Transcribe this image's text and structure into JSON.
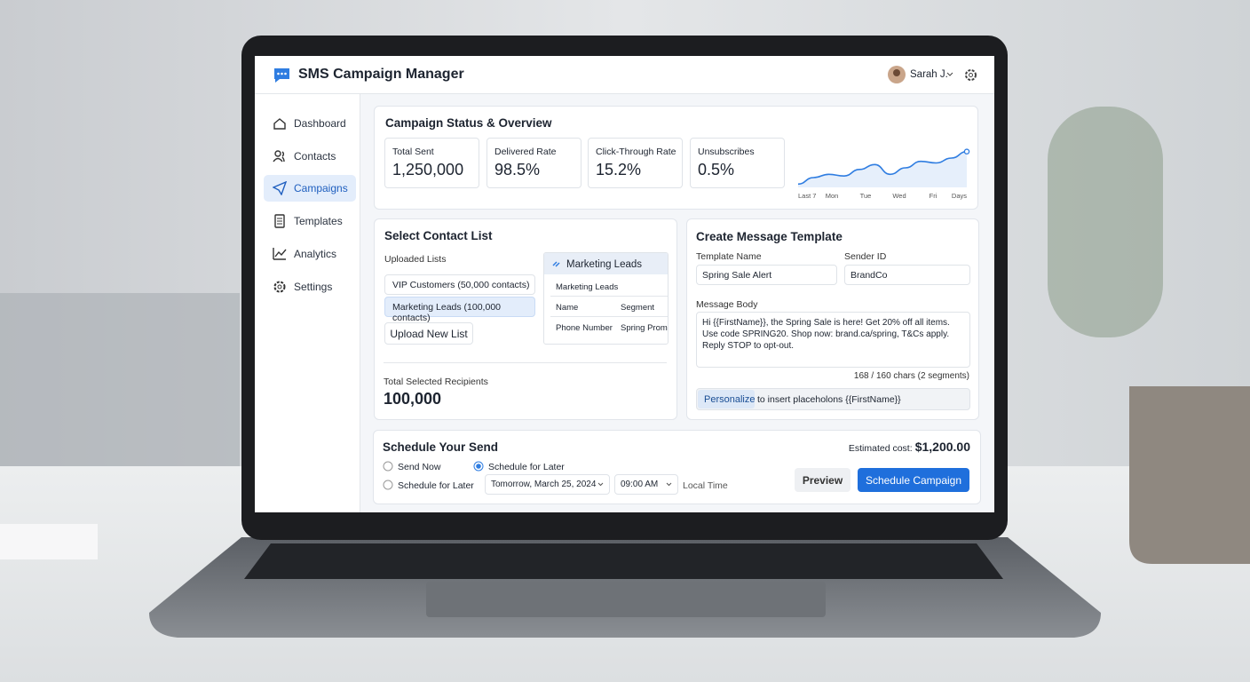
{
  "app": {
    "title": "SMS Campaign Manager",
    "user": "Sarah J.",
    "nav": [
      "Dashboard",
      "Contacts",
      "Campaigns",
      "Templates",
      "Analytics",
      "Settings"
    ]
  },
  "overview": {
    "title": "Campaign Status & Overview",
    "stats": [
      {
        "label": "Total Sent",
        "value": "1,250,000"
      },
      {
        "label": "Delivered Rate",
        "value": "98.5%"
      },
      {
        "label": "Click-Through Rate",
        "value": "15.2%"
      },
      {
        "label": "Unsubscribes",
        "value": "0.5%"
      }
    ],
    "chart": {
      "type": "line",
      "x_labels": [
        "Last 7",
        "Mon",
        "Tue",
        "Wed",
        "Fri",
        "Days"
      ],
      "values": [
        1,
        3,
        4,
        3.5,
        5.5,
        7,
        4,
        6,
        8,
        7.5,
        9,
        11
      ],
      "ylim": [
        0,
        12
      ],
      "color": "#2f7de1"
    }
  },
  "contacts": {
    "title": "Select Contact List",
    "uploaded_label": "Uploaded Lists",
    "lists": [
      "VIP Customers (50,000 contacts)",
      "Marketing Leads (100,000 contacts)"
    ],
    "upload_button": "Upload New List",
    "preview": {
      "title": "Marketing Leads",
      "subtitle": "Marketing Leads",
      "columns": [
        "Name",
        "Segment"
      ],
      "row": [
        "Phone Number",
        "Spring Promo"
      ]
    },
    "total_label": "Total Selected Recipients",
    "total": "100,000"
  },
  "template": {
    "title": "Create Message Template",
    "name_label": "Template Name",
    "name": "Spring Sale Alert",
    "sender_label": "Sender ID",
    "sender": "BrandCo",
    "body_label": "Message Body",
    "body": "Hi {{FirstName}}, the Spring Sale is here! Get 20% off all items. Use code SPRING20. Shop now: brand.ca/spring, T&Cs apply. Reply STOP to opt-out.",
    "count": "168 / 160 chars (2 segments)",
    "personalize_button": "Personalize",
    "personalize_hint": "to insert placeholons {{FirstName}}"
  },
  "schedule": {
    "title": "Schedule Your Send",
    "send_now": "Send Now",
    "later": "Schedule for Later",
    "later2": "Schedule for Later",
    "date": "Tomorrow, March 25, 2024",
    "time": "09:00 AM",
    "timezone": "Local Time",
    "cost_label": "Estimated cost:",
    "cost": "$1,200.00",
    "preview_button": "Preview",
    "submit_button": "Schedule Campaign"
  }
}
